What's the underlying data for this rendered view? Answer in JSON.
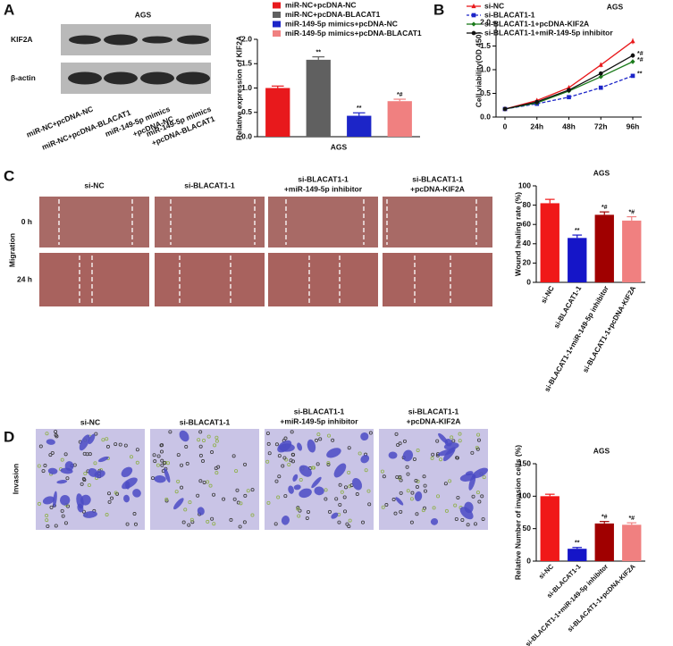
{
  "panel_labels": [
    "A",
    "B",
    "C",
    "D"
  ],
  "blot": {
    "title": "AGS",
    "rows": [
      "KIF2A",
      "β-actin"
    ],
    "lanes": [
      [
        "miR-NC+pcDNA-NC"
      ],
      [
        "miR-NC+pcDNA-BLACAT1"
      ],
      [
        "miR-149-5p mimics",
        "+pcDNA-NC"
      ],
      [
        "miR-149-5p mimics",
        "+pcDNA-BLACAT1"
      ]
    ]
  },
  "migration": {
    "row_title": "Migration",
    "rows": [
      "0 h",
      "24 h"
    ],
    "columns": [
      [
        "si-NC"
      ],
      [
        "si-BLACAT1-1"
      ],
      [
        "si-BLACAT1-1",
        "+miR-149-5p inhibitor"
      ],
      [
        "si-BLACAT1-1",
        "+pcDNA-KIF2A"
      ]
    ]
  },
  "invasion": {
    "row_title": "Invasion",
    "columns": [
      [
        "si-NC"
      ],
      [
        "si-BLACAT1-1"
      ],
      [
        "si-BLACAT1-1",
        "+miR-149-5p inhibitor"
      ],
      [
        "si-BLACAT1-1",
        "+pcDNA-KIF2A"
      ]
    ]
  },
  "chart_data": [
    {
      "type": "bar",
      "x_label": "AGS",
      "y_label": "Relative expression of KIF2A",
      "legend": true,
      "categories": [
        "miR-NC+pcDNA-NC",
        "miR-NC+pcDNA-BLACAT1",
        "miR-149-5p mimics+pcDNA-NC",
        "miR-149-5p mimics+pcDNA-BLACAT1"
      ],
      "values": [
        1.0,
        1.58,
        0.43,
        0.73
      ],
      "errors": [
        0.04,
        0.06,
        0.06,
        0.04
      ],
      "annotations": [
        null,
        "**",
        "**",
        "*#"
      ],
      "colors": [
        "#e8191c",
        "#606060",
        "#1c25c8",
        "#f08080"
      ],
      "ylim": [
        0,
        2
      ],
      "yticks": [
        {
          "value": 0,
          "label": "0.0"
        },
        {
          "value": 0.5,
          "label": "0.5"
        },
        {
          "value": 1,
          "label": "1.0"
        },
        {
          "value": 1.5,
          "label": "1.5"
        },
        {
          "value": 2,
          "label": "2.0"
        }
      ]
    },
    {
      "type": "line",
      "title": "AGS",
      "y_label": "Cell viability(OD 450)",
      "categories": [
        "0",
        "24h",
        "48h",
        "72h",
        "96h"
      ],
      "series": [
        {
          "name": "si-NC",
          "color": "#e8191c",
          "marker": "triangle",
          "values": [
            0.17,
            0.35,
            0.62,
            1.1,
            1.6
          ],
          "errors": [
            0.02,
            0.03,
            0.03,
            0.05,
            0.06
          ]
        },
        {
          "name": "si-BLACAT1-1",
          "color": "#1c25c8",
          "marker": "square",
          "dashed": true,
          "values": [
            0.17,
            0.28,
            0.42,
            0.62,
            0.87
          ],
          "errors": [
            0.02,
            0.02,
            0.03,
            0.03,
            0.04
          ],
          "end_label": "**"
        },
        {
          "name": "si-BLACAT1-1+pcDNA-KIF2A",
          "color": "#1a7a1a",
          "marker": "diamond",
          "values": [
            0.17,
            0.3,
            0.55,
            0.85,
            1.17
          ],
          "errors": [
            0.02,
            0.02,
            0.03,
            0.04,
            0.05
          ],
          "end_label": "*#"
        },
        {
          "name": "si-BLACAT1-1+miR-149-5p inhibitor",
          "color": "#111111",
          "marker": "circle",
          "values": [
            0.17,
            0.32,
            0.57,
            0.92,
            1.3
          ],
          "errors": [
            0.02,
            0.02,
            0.03,
            0.04,
            0.05
          ],
          "end_label": "*#"
        }
      ],
      "ylim": [
        0,
        2
      ],
      "yticks": [
        {
          "value": 0,
          "label": "0.0"
        },
        {
          "value": 0.5,
          "label": "0.5"
        },
        {
          "value": 1,
          "label": "1.0"
        },
        {
          "value": 1.5,
          "label": "1.5"
        },
        {
          "value": 2,
          "label": "2.0"
        }
      ]
    },
    {
      "type": "bar",
      "title": "AGS",
      "y_label": "Wound healing rate (%)",
      "categories": [
        "si-NC",
        "si-BLACAT1-1",
        "si-BLACAT1-1+miR-149-5p inhibitor",
        "si-BLACAT1-1+pcDNA-KIF2A"
      ],
      "values": [
        82,
        46,
        70,
        64
      ],
      "errors": [
        4,
        3,
        3,
        4
      ],
      "annotations": [
        null,
        "**",
        "*#",
        "*#"
      ],
      "colors": [
        "#f01818",
        "#1515c8",
        "#a00000",
        "#f08080"
      ],
      "ylim": [
        0,
        100
      ],
      "yticks": [
        0,
        20,
        40,
        60,
        80,
        100
      ]
    },
    {
      "type": "bar",
      "title": "AGS",
      "y_label": "Relative Number of invasion cells (%)",
      "categories": [
        "si-NC",
        "si-BLACAT1-1",
        "si-BLACAT1-1+miR-149-5p inhibitor",
        "si-BLACAT1-1+pcDNA-KIF2A"
      ],
      "values": [
        100,
        19,
        58,
        56
      ],
      "errors": [
        3,
        2,
        3,
        3
      ],
      "annotations": [
        null,
        "**",
        "*#",
        "*#"
      ],
      "colors": [
        "#f01818",
        "#1515c8",
        "#a00000",
        "#f08080"
      ],
      "ylim": [
        0,
        150
      ],
      "yticks": [
        0,
        50,
        100,
        150
      ]
    }
  ]
}
